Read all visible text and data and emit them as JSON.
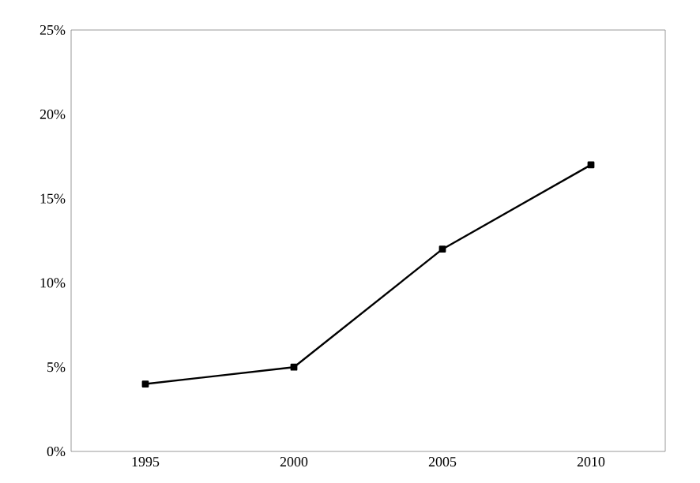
{
  "chart_data": {
    "type": "line",
    "categories": [
      "1995",
      "2000",
      "2005",
      "2010"
    ],
    "series": [
      {
        "color": "#000000",
        "values": [
          4,
          5,
          12,
          17
        ]
      }
    ],
    "ylim": [
      0,
      25
    ],
    "yticks": [
      {
        "value": 0,
        "label": "0%"
      },
      {
        "value": 5,
        "label": "5%"
      },
      {
        "value": 10,
        "label": "10%"
      },
      {
        "value": 15,
        "label": "15%"
      },
      {
        "value": 20,
        "label": "20%"
      },
      {
        "value": 25,
        "label": "25%"
      }
    ],
    "marker": "square",
    "line_style": "solid"
  }
}
